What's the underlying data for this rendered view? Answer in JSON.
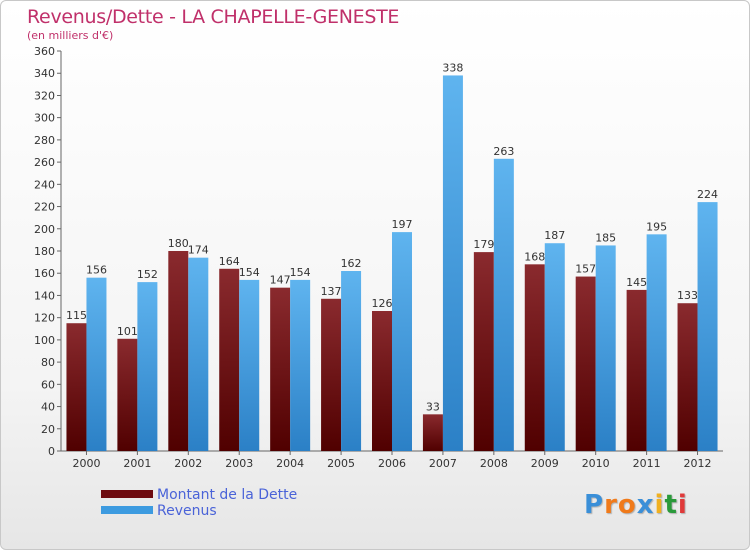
{
  "title": "Revenus/Dette - LA CHAPELLE-GENESTE",
  "subtitle": "(en milliers d'€)",
  "colors": {
    "dette": "#6e0b10",
    "revenus": "#3d9be0",
    "title": "#c0306a",
    "legend_text": "#4a63d8"
  },
  "logo": {
    "letters": [
      "P",
      "r",
      "o",
      "x",
      "i",
      "t",
      "i"
    ],
    "colors": [
      "#3a8fd8",
      "#f07a1a",
      "#f07a1a",
      "#3a8fd8",
      "#f0b020",
      "#2a9a3a",
      "#e03a3a"
    ]
  },
  "chart_data": {
    "type": "bar",
    "categories": [
      "2000",
      "2001",
      "2002",
      "2003",
      "2004",
      "2005",
      "2006",
      "2007",
      "2008",
      "2009",
      "2010",
      "2011",
      "2012"
    ],
    "series": [
      {
        "name": "Montant de la Dette",
        "values": [
          115,
          101,
          180,
          164,
          147,
          137,
          126,
          33,
          179,
          168,
          157,
          145,
          133
        ]
      },
      {
        "name": "Revenus",
        "values": [
          156,
          152,
          174,
          154,
          154,
          162,
          197,
          338,
          263,
          187,
          185,
          195,
          224
        ]
      }
    ],
    "ylim": [
      0,
      360
    ],
    "ytick_step": 20,
    "grid": false,
    "legend": "bottom-left"
  }
}
